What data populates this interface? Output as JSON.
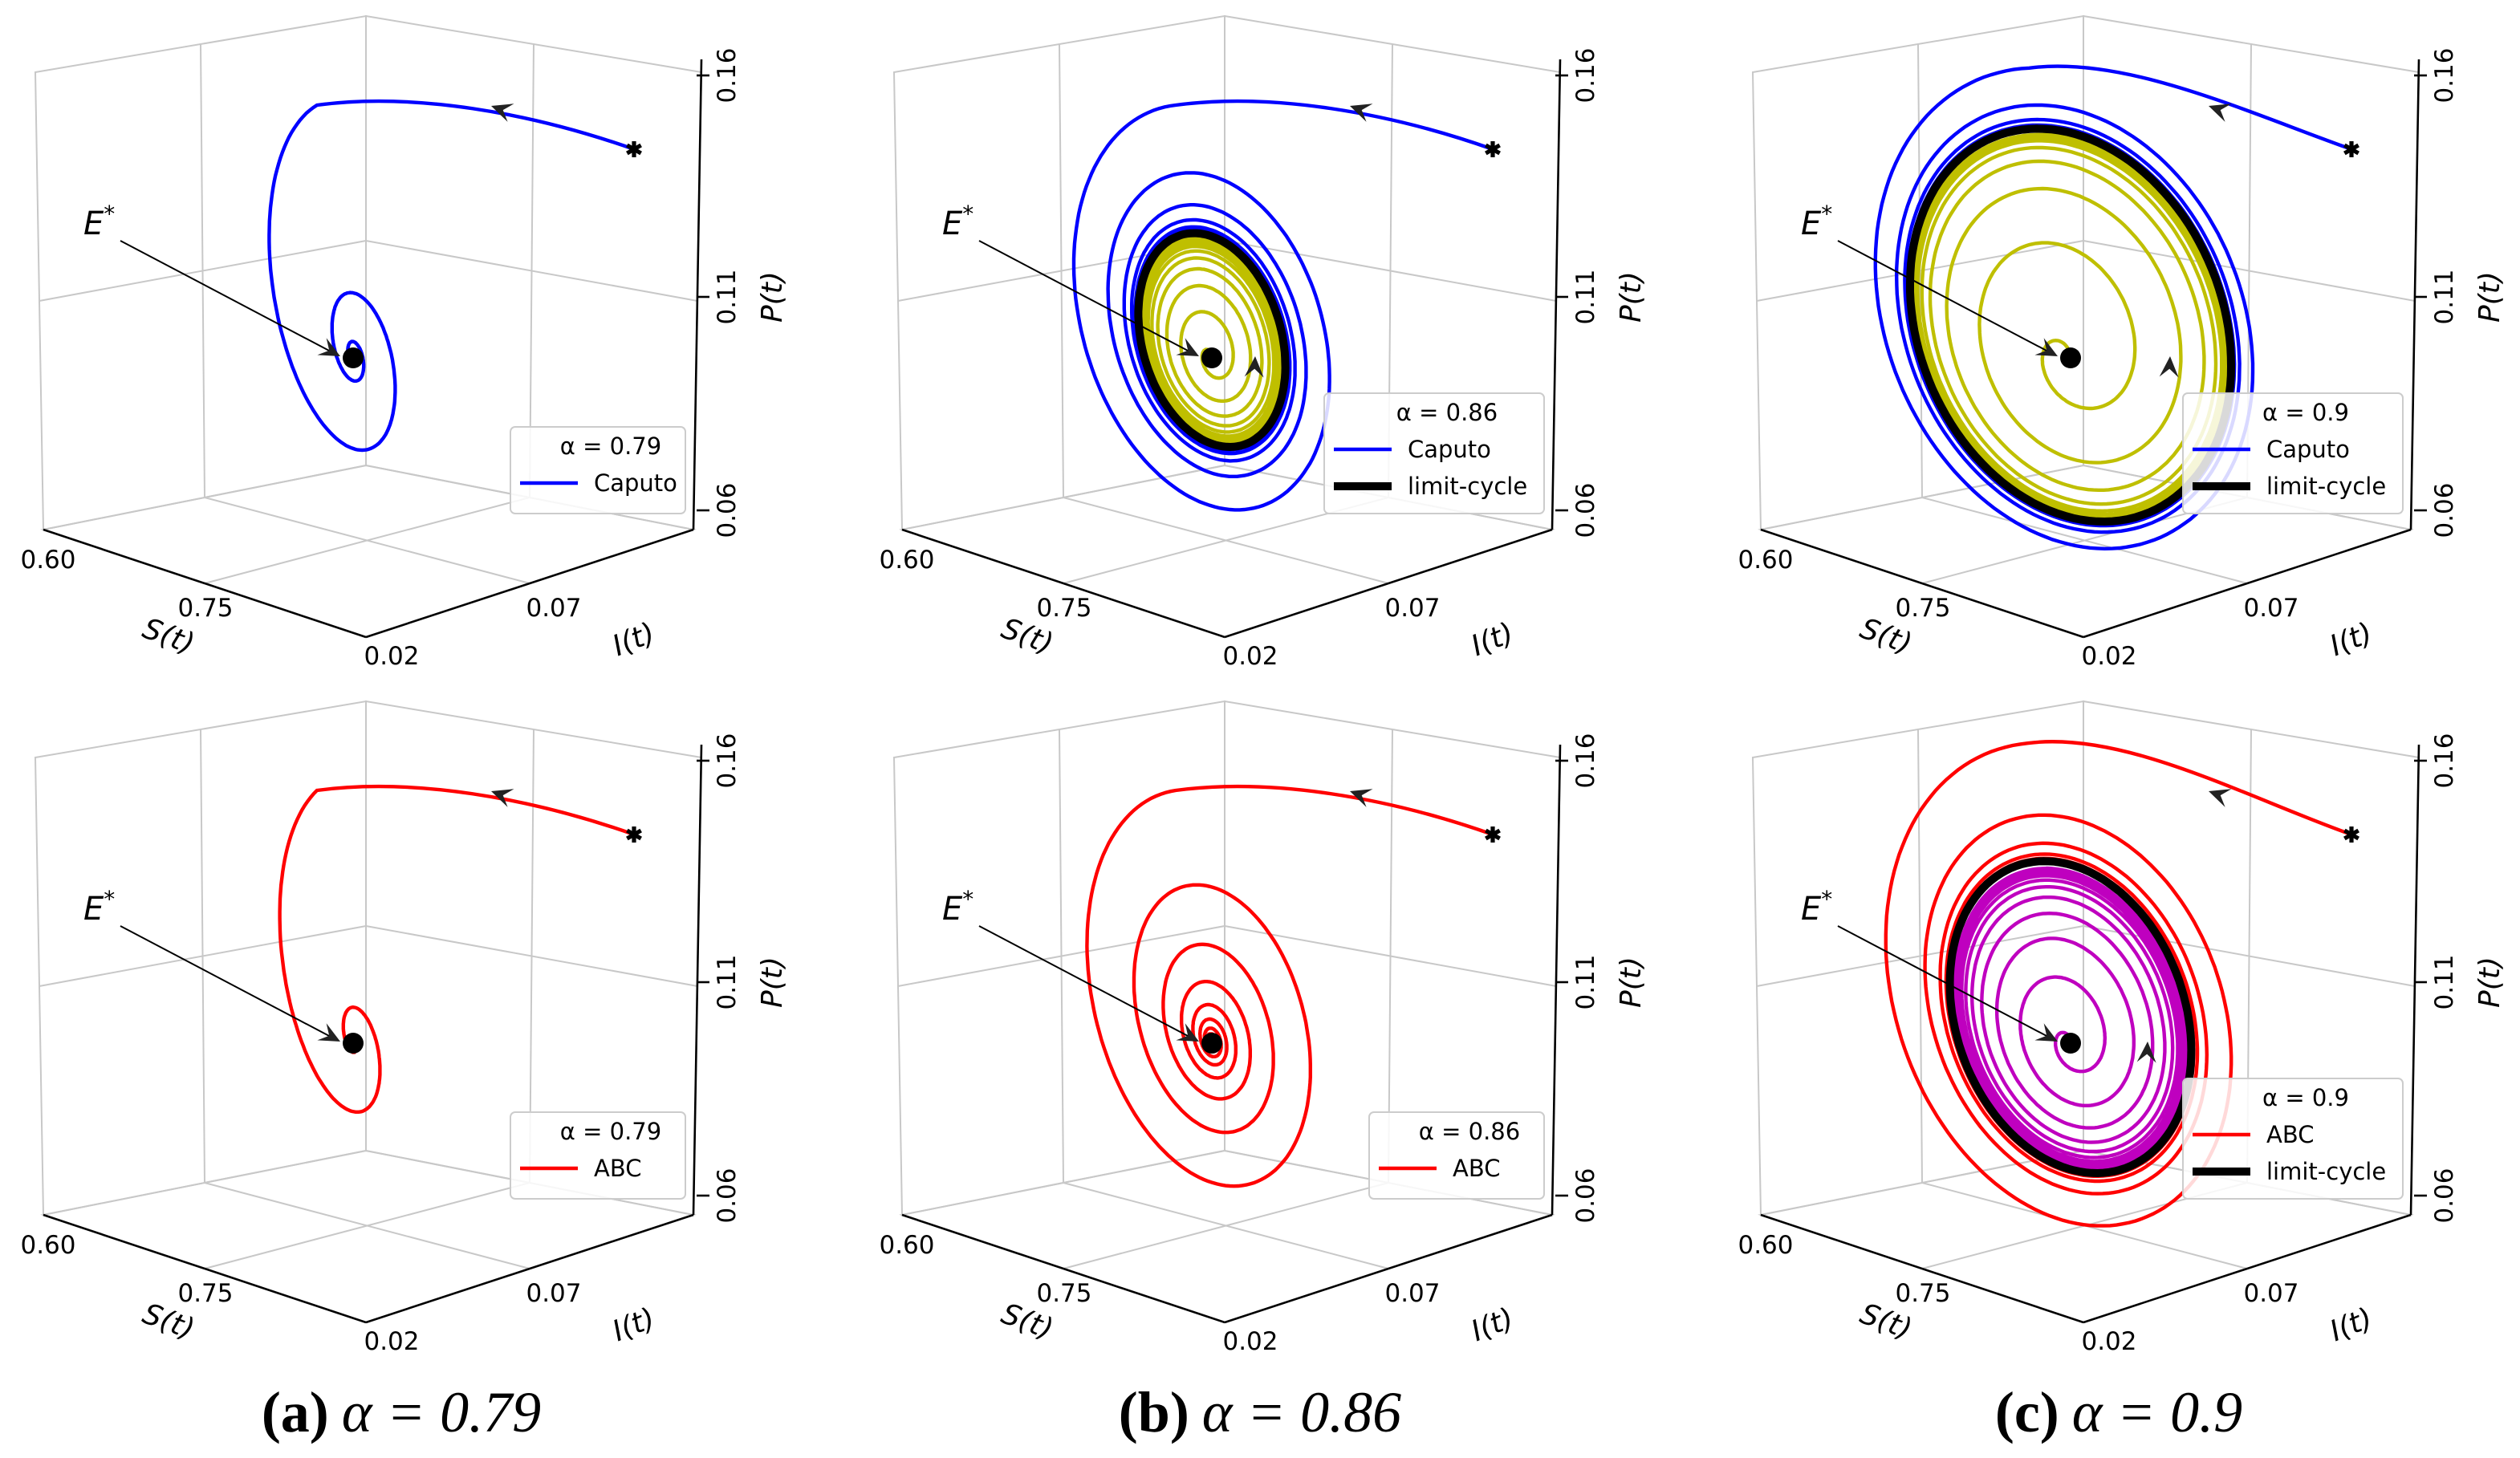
{
  "chart_data": {
    "type": "line",
    "subtype": "3d-phase-trajectory",
    "axes": {
      "x": {
        "label": "S(t)",
        "ticks": [
          "0.60",
          "0.75"
        ]
      },
      "y": {
        "label": "I(t)",
        "ticks": [
          "0.02",
          "0.07"
        ]
      },
      "z": {
        "label": "P(t)",
        "ticks": [
          "0.06",
          "0.11",
          "0.16"
        ]
      }
    },
    "grid": true,
    "legend_placement": "lower-right",
    "equilibrium_label": {
      "base": "E",
      "sup": "*"
    },
    "panels": [
      {
        "id": "a-caputo",
        "row": 0,
        "col": 0,
        "legend_title": "α = 0.79",
        "series": [
          {
            "name": "Caputo",
            "color": "#0000ff"
          }
        ],
        "behavior": "converges to E*"
      },
      {
        "id": "b-caputo",
        "row": 0,
        "col": 1,
        "legend_title": "α = 0.86",
        "series": [
          {
            "name": "Caputo",
            "color": "#0000ff"
          },
          {
            "name": "limit-cycle",
            "color": "#000000"
          }
        ],
        "inner_color": "#bfbf00",
        "behavior": "limit cycle"
      },
      {
        "id": "c-caputo",
        "row": 0,
        "col": 2,
        "legend_title": "α = 0.9",
        "series": [
          {
            "name": "Caputo",
            "color": "#0000ff"
          },
          {
            "name": "limit-cycle",
            "color": "#000000"
          }
        ],
        "inner_color": "#bfbf00",
        "behavior": "limit cycle"
      },
      {
        "id": "a-abc",
        "row": 1,
        "col": 0,
        "legend_title": "α = 0.79",
        "series": [
          {
            "name": "ABC",
            "color": "#ff0000"
          }
        ],
        "behavior": "converges to E*"
      },
      {
        "id": "b-abc",
        "row": 1,
        "col": 1,
        "legend_title": "α = 0.86",
        "series": [
          {
            "name": "ABC",
            "color": "#ff0000"
          }
        ],
        "behavior": "converges to E*"
      },
      {
        "id": "c-abc",
        "row": 1,
        "col": 2,
        "legend_title": "α = 0.9",
        "series": [
          {
            "name": "ABC",
            "color": "#ff0000"
          },
          {
            "name": "limit-cycle",
            "color": "#000000"
          }
        ],
        "inner_color": "#bf00bf",
        "behavior": "limit cycle"
      }
    ]
  },
  "captions": [
    {
      "letter": "(a)",
      "text": "α = 0.79"
    },
    {
      "letter": "(b)",
      "text": "α = 0.86"
    },
    {
      "letter": "(c)",
      "text": "α = 0.9"
    }
  ]
}
